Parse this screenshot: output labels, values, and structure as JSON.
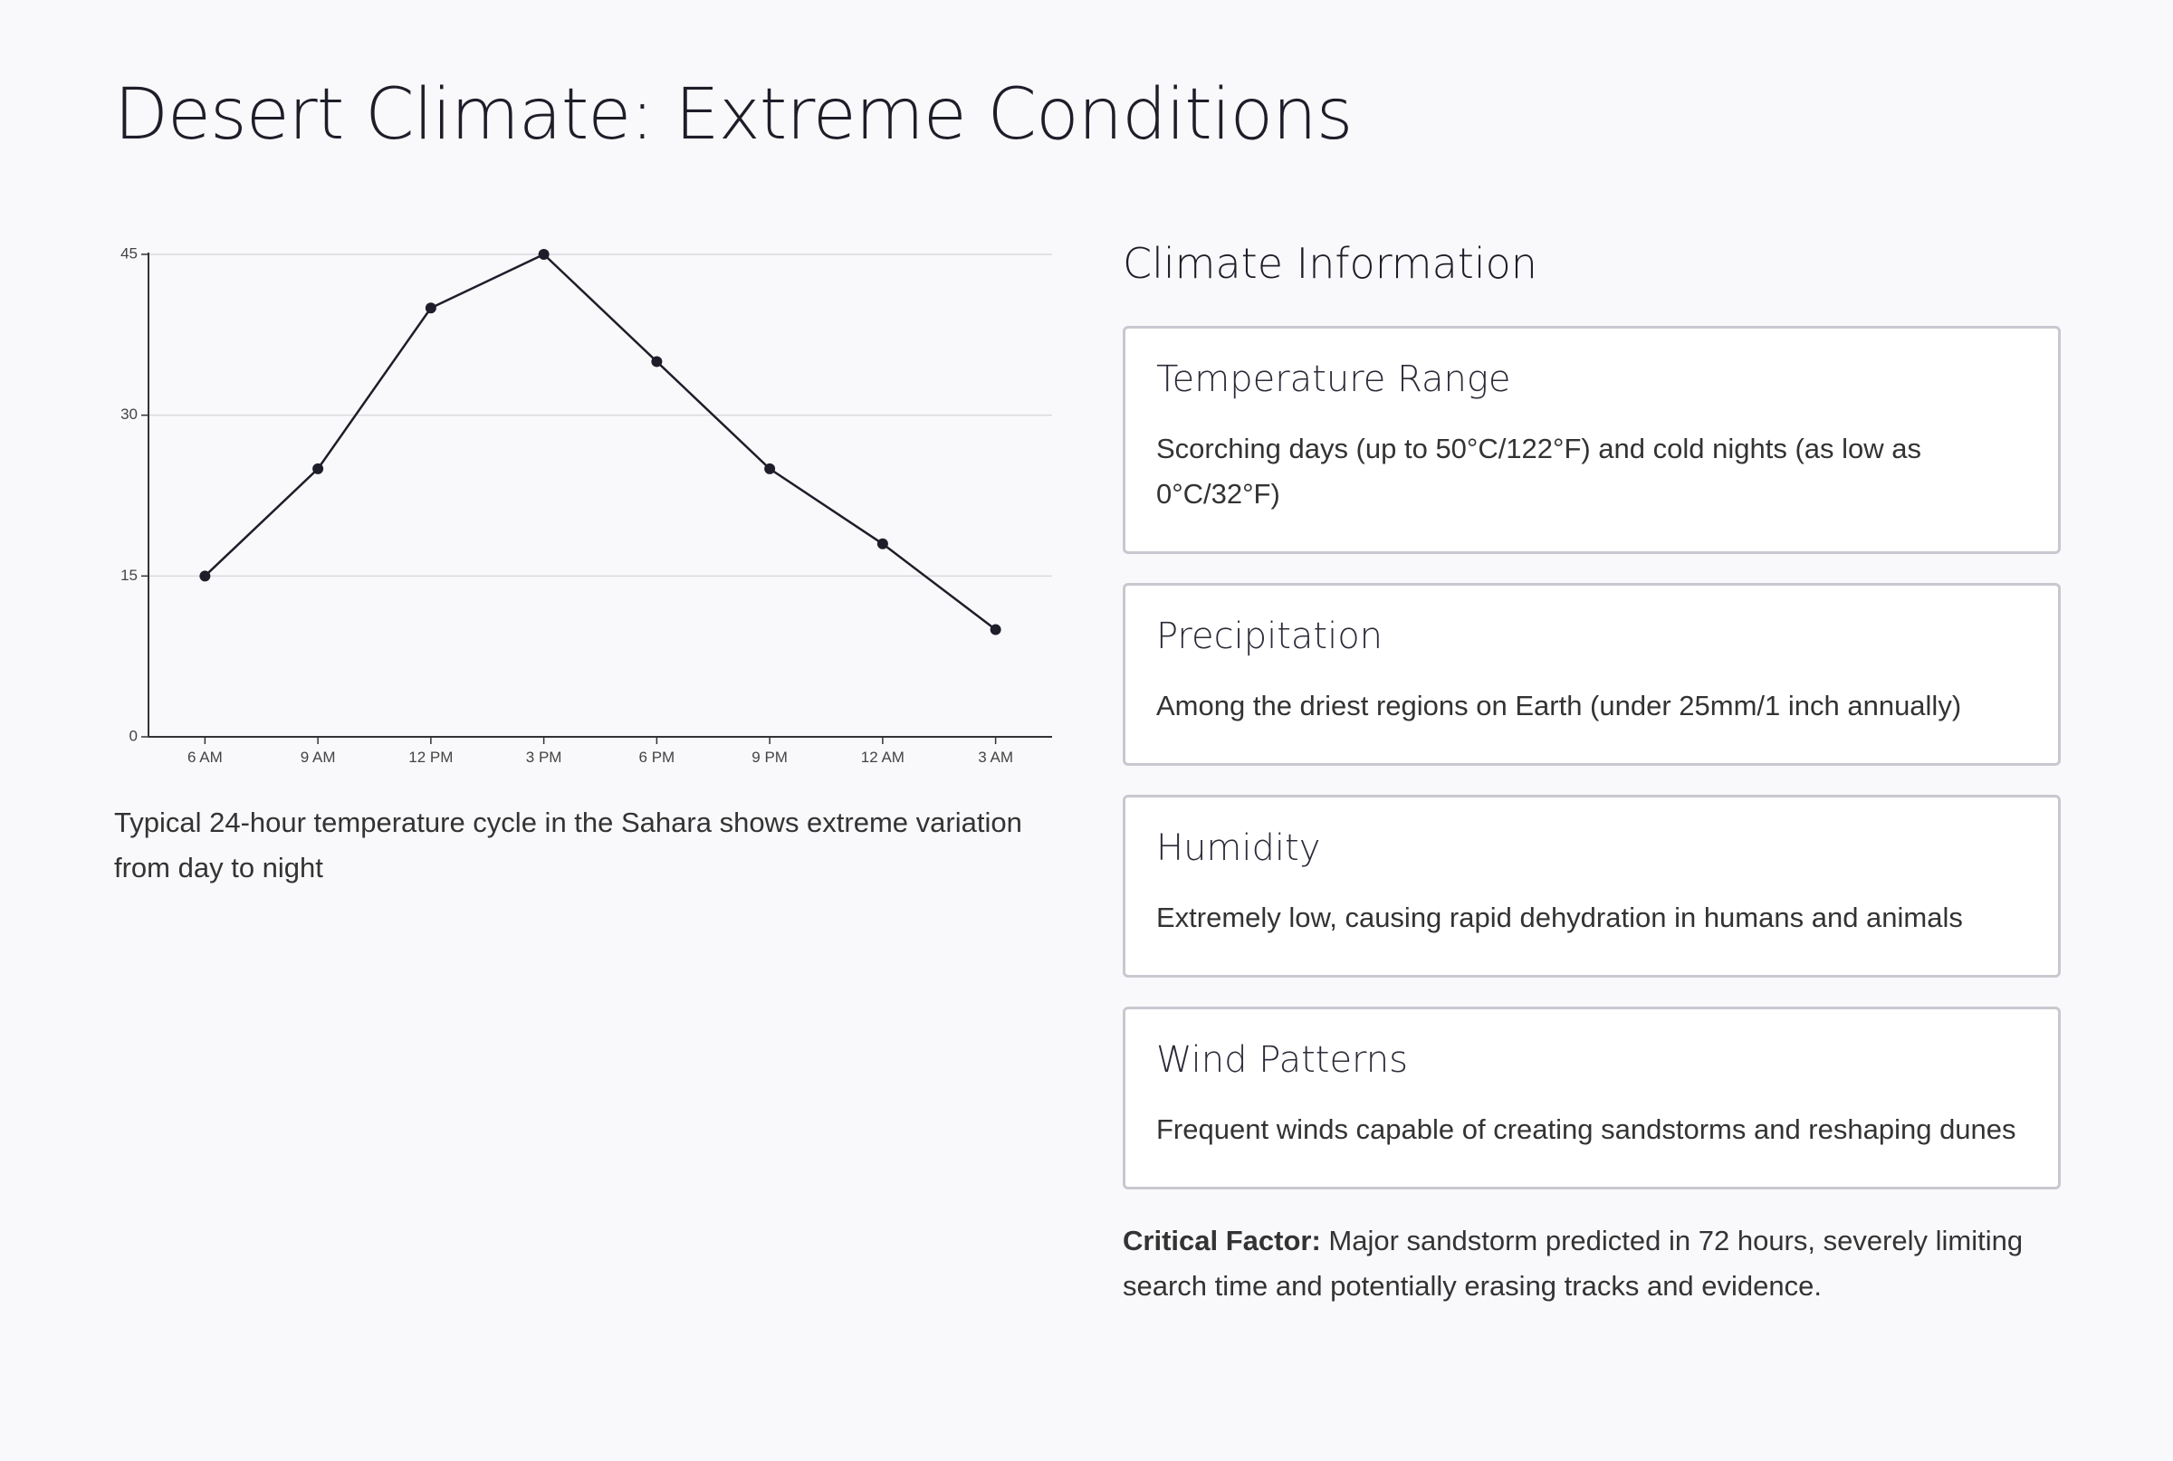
{
  "page": {
    "title": "Desert Climate: Extreme Conditions"
  },
  "chart_data": {
    "type": "line",
    "title": "",
    "xlabel": "",
    "ylabel": "",
    "categories": [
      "6 AM",
      "9 AM",
      "12 PM",
      "3 PM",
      "6 PM",
      "9 PM",
      "12 AM",
      "3 AM"
    ],
    "series": [
      {
        "values": [
          15,
          25,
          40,
          45,
          35,
          25,
          18,
          10
        ]
      }
    ],
    "ylim": [
      0,
      45
    ],
    "yticks": [
      0,
      15,
      30,
      45
    ],
    "grid": true,
    "legend": "none",
    "line_color": "#1e1e2a",
    "grid_color": "#d9d9df"
  },
  "chart": {
    "caption": "Typical 24-hour temperature cycle in the Sahara shows extreme variation from day to night"
  },
  "info": {
    "heading": "Climate Information",
    "cards": [
      {
        "title": "Temperature Range",
        "text": "Scorching days (up to 50°C/122°F) and cold nights (as low as 0°C/32°F)"
      },
      {
        "title": "Precipitation",
        "text": "Among the driest regions on Earth (under 25mm/1 inch annually)"
      },
      {
        "title": "Humidity",
        "text": "Extremely low, causing rapid dehydration in humans and animals"
      },
      {
        "title": "Wind Patterns",
        "text": "Frequent winds capable of creating sandstorms and reshaping dunes"
      }
    ],
    "critical_label": "Critical Factor:",
    "critical_text": " Major sandstorm predicted in 72 hours, severely limiting search time and potentially erasing tracks and evidence."
  }
}
